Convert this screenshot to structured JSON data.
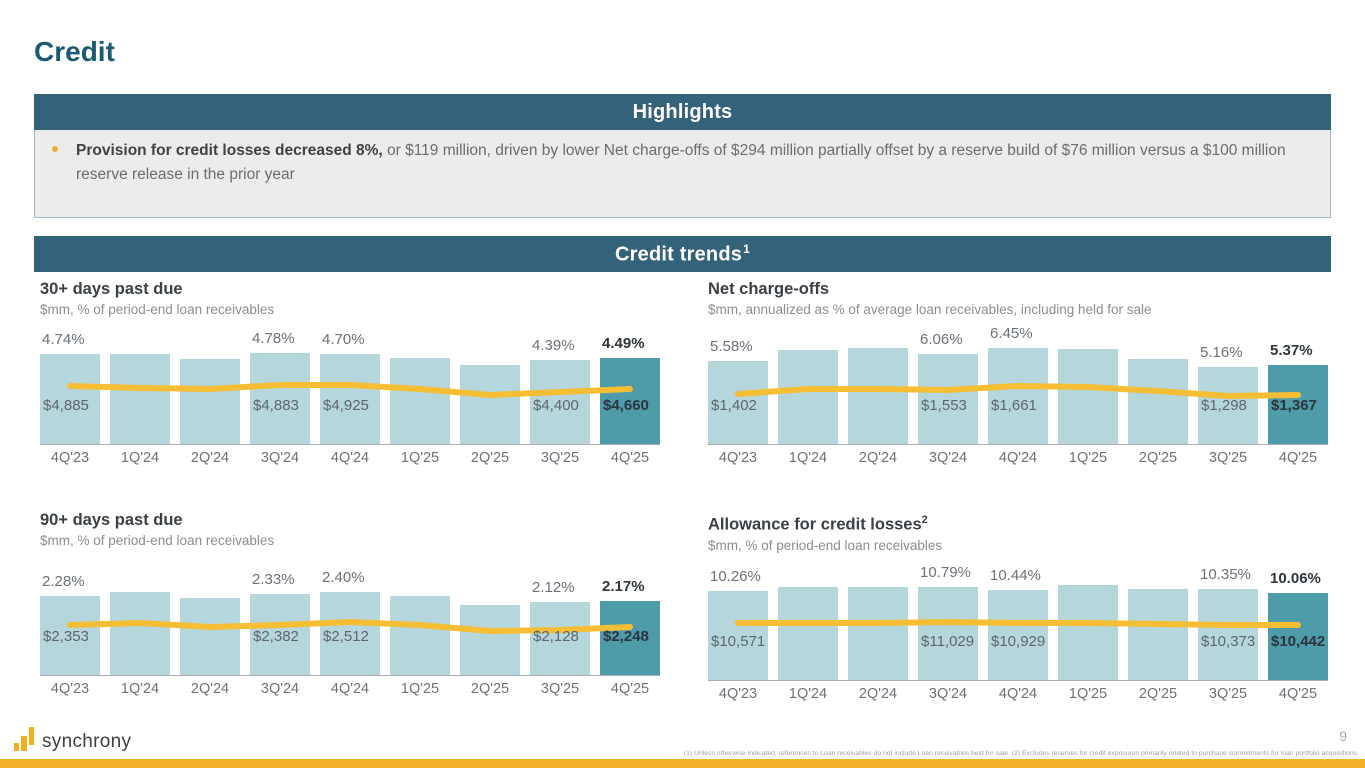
{
  "page": {
    "title": "Credit",
    "page_number": "9",
    "footnote": "(1) Unless otherwise indicated, references to Loan receivables do not include Loan receivables held for sale.  (2) Excludes reserves for credit exposures primarily related to purchase commitments for loan portfolio acquisitions.",
    "logo_text": "synchrony"
  },
  "highlights": {
    "header": "Highlights",
    "bullet_bold": "Provision for credit losses decreased 8%,",
    "bullet_rest": " or $119 million, driven by lower Net charge-offs of $294 million partially offset by a reserve build of $76 million versus a $100 million reserve release in the prior year"
  },
  "trends": {
    "header": "Credit trends",
    "header_sup": "1"
  },
  "colors": {
    "banner_teal": "#35627B",
    "title_teal": "#1A5A73",
    "bar_light": "#B5D6DB",
    "bar_dark": "#4E9BA9",
    "trend_gold": "#F6BE35",
    "accent_gold": "#F3B229",
    "highlight_bg": "#ECECEC"
  },
  "chart_data": [
    {
      "type": "bar",
      "slug": "30-plus-days-past-due",
      "title": "30+ days past due",
      "title_sup": "",
      "subtitle": "$mm, % of period-end loan receivables",
      "categories": [
        "4Q'23",
        "1Q'24",
        "2Q'24",
        "3Q'24",
        "4Q'24",
        "1Q'25",
        "2Q'25",
        "3Q'25",
        "4Q'25"
      ],
      "dollar_labels": [
        "$4,885",
        null,
        null,
        "$4,883",
        "$4,925",
        null,
        null,
        "$4,400",
        "$4,660"
      ],
      "pct_labels": [
        "4.74%",
        null,
        null,
        "4.78%",
        "4.70%",
        null,
        null,
        "4.39%",
        "4.49%"
      ],
      "bar_heights": [
        0.9,
        0.9,
        0.85,
        0.91,
        0.9,
        0.86,
        0.79,
        0.84,
        0.86
      ],
      "line_heights": [
        0.58,
        0.56,
        0.55,
        0.59,
        0.59,
        0.55,
        0.49,
        0.52,
        0.55
      ],
      "highlight_index": 8
    },
    {
      "type": "bar",
      "slug": "net-charge-offs",
      "title": "Net charge-offs",
      "title_sup": "",
      "subtitle": "$mm, annualized as % of average loan receivables, including held for sale",
      "categories": [
        "4Q'23",
        "1Q'24",
        "2Q'24",
        "3Q'24",
        "4Q'24",
        "1Q'25",
        "2Q'25",
        "3Q'25",
        "4Q'25"
      ],
      "dollar_labels": [
        "$1,402",
        null,
        null,
        "$1,553",
        "$1,661",
        null,
        null,
        "$1,298",
        "$1,367"
      ],
      "pct_labels": [
        "5.58%",
        null,
        null,
        "6.06%",
        "6.45%",
        null,
        null,
        "5.16%",
        "5.37%"
      ],
      "bar_heights": [
        0.83,
        0.94,
        0.96,
        0.9,
        0.96,
        0.95,
        0.85,
        0.77,
        0.79
      ],
      "line_heights": [
        0.5,
        0.55,
        0.55,
        0.54,
        0.58,
        0.57,
        0.53,
        0.48,
        0.49
      ],
      "highlight_index": 8
    },
    {
      "type": "bar",
      "slug": "90-plus-days-past-due",
      "title": "90+ days past due",
      "title_sup": "",
      "subtitle": "$mm, % of period-end loan receivables",
      "categories": [
        "4Q'23",
        "1Q'24",
        "2Q'24",
        "3Q'24",
        "4Q'24",
        "1Q'25",
        "2Q'25",
        "3Q'25",
        "4Q'25"
      ],
      "dollar_labels": [
        "$2,353",
        null,
        null,
        "$2,382",
        "$2,512",
        null,
        null,
        "$2,128",
        "$2,248"
      ],
      "pct_labels": [
        "2.28%",
        null,
        null,
        "2.33%",
        "2.40%",
        null,
        null,
        "2.12%",
        "2.17%"
      ],
      "bar_heights": [
        0.79,
        0.83,
        0.77,
        0.81,
        0.83,
        0.79,
        0.7,
        0.73,
        0.74
      ],
      "line_heights": [
        0.5,
        0.52,
        0.48,
        0.5,
        0.53,
        0.5,
        0.44,
        0.45,
        0.48
      ],
      "highlight_index": 8
    },
    {
      "type": "bar",
      "slug": "allowance-for-credit-losses",
      "title": "Allowance for credit losses",
      "title_sup": "2",
      "subtitle": "$mm, % of period-end loan receivables",
      "categories": [
        "4Q'23",
        "1Q'24",
        "2Q'24",
        "3Q'24",
        "4Q'24",
        "1Q'25",
        "2Q'25",
        "3Q'25",
        "4Q'25"
      ],
      "dollar_labels": [
        "$10,571",
        null,
        null,
        "$11,029",
        "$10,929",
        null,
        null,
        "$10,373",
        "$10,442"
      ],
      "pct_labels": [
        "10.26%",
        null,
        null,
        "10.79%",
        "10.44%",
        null,
        null,
        "10.35%",
        "10.06%"
      ],
      "bar_heights": [
        0.89,
        0.93,
        0.93,
        0.93,
        0.9,
        0.95,
        0.91,
        0.91,
        0.87
      ],
      "line_heights": [
        0.57,
        0.57,
        0.57,
        0.58,
        0.57,
        0.57,
        0.56,
        0.55,
        0.55
      ],
      "highlight_index": 8
    }
  ]
}
